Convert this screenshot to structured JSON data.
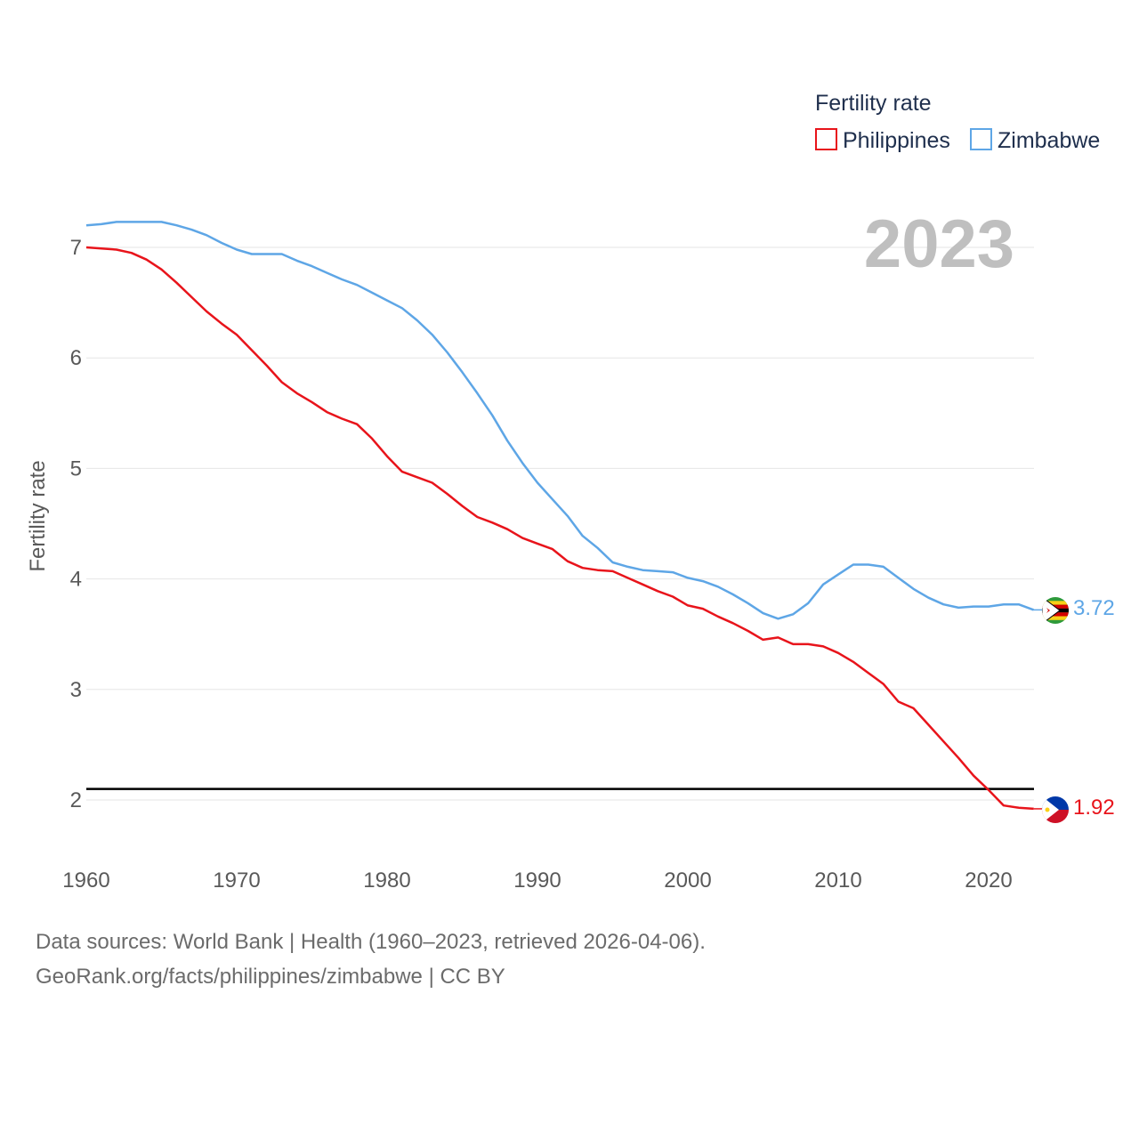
{
  "chart_data": {
    "type": "line",
    "year_label": "2023",
    "ylabel": "Fertility rate",
    "legend_title": "Fertility rate",
    "xlim": [
      1960,
      2023
    ],
    "ylim": [
      1.5,
      7.5
    ],
    "x_ticks": [
      "1960",
      "1970",
      "1980",
      "1990",
      "2000",
      "2010",
      "2020"
    ],
    "y_ticks": [
      "2",
      "3",
      "4",
      "5",
      "6",
      "7"
    ],
    "reference_line": 2.1,
    "x": [
      1960,
      1961,
      1962,
      1963,
      1964,
      1965,
      1966,
      1967,
      1968,
      1969,
      1970,
      1971,
      1972,
      1973,
      1974,
      1975,
      1976,
      1977,
      1978,
      1979,
      1980,
      1981,
      1982,
      1983,
      1984,
      1985,
      1986,
      1987,
      1988,
      1989,
      1990,
      1991,
      1992,
      1993,
      1994,
      1995,
      1996,
      1997,
      1998,
      1999,
      2000,
      2001,
      2002,
      2003,
      2004,
      2005,
      2006,
      2007,
      2008,
      2009,
      2010,
      2011,
      2012,
      2013,
      2014,
      2015,
      2016,
      2017,
      2018,
      2019,
      2020,
      2021,
      2022,
      2023
    ],
    "series": [
      {
        "name": "Philippines",
        "color": "#e8141b",
        "end_label": "1.92",
        "values": [
          7.0,
          6.99,
          6.98,
          6.95,
          6.89,
          6.8,
          6.68,
          6.55,
          6.42,
          6.31,
          6.21,
          6.07,
          5.93,
          5.78,
          5.68,
          5.6,
          5.51,
          5.45,
          5.4,
          5.27,
          5.11,
          4.97,
          4.92,
          4.87,
          4.77,
          4.66,
          4.56,
          4.51,
          4.45,
          4.37,
          4.32,
          4.27,
          4.16,
          4.1,
          4.08,
          4.07,
          4.01,
          3.95,
          3.89,
          3.84,
          3.76,
          3.73,
          3.66,
          3.6,
          3.53,
          3.45,
          3.47,
          3.41,
          3.41,
          3.39,
          3.33,
          3.25,
          3.15,
          3.05,
          2.89,
          2.83,
          2.68,
          2.53,
          2.38,
          2.22,
          2.09,
          1.95,
          1.93,
          1.92
        ]
      },
      {
        "name": "Zimbabwe",
        "color": "#5ea6e6",
        "end_label": "3.72",
        "values": [
          7.2,
          7.21,
          7.23,
          7.23,
          7.23,
          7.23,
          7.2,
          7.16,
          7.11,
          7.04,
          6.98,
          6.94,
          6.94,
          6.94,
          6.88,
          6.83,
          6.77,
          6.71,
          6.66,
          6.59,
          6.52,
          6.45,
          6.34,
          6.21,
          6.05,
          5.87,
          5.68,
          5.48,
          5.25,
          5.05,
          4.87,
          4.72,
          4.57,
          4.39,
          4.28,
          4.15,
          4.11,
          4.08,
          4.07,
          4.06,
          4.01,
          3.98,
          3.93,
          3.86,
          3.78,
          3.69,
          3.64,
          3.68,
          3.78,
          3.95,
          4.04,
          4.13,
          4.13,
          4.11,
          4.01,
          3.91,
          3.83,
          3.77,
          3.74,
          3.75,
          3.75,
          3.77,
          3.77,
          3.72
        ]
      }
    ]
  },
  "footer": {
    "line1": "Data sources: World Bank | Health (1960–2023, retrieved 2026-04-06).",
    "line2": "GeoRank.org/facts/philippines/zimbabwe | CC BY"
  }
}
